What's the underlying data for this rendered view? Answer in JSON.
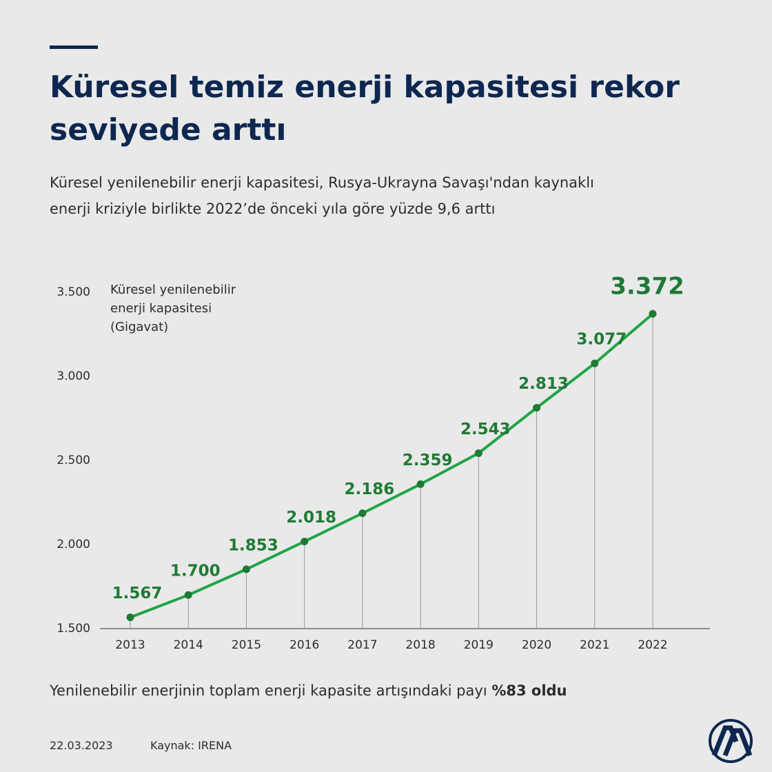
{
  "header": {
    "title": "Küresel temiz enerji kapasitesi rekor seviyede arttı",
    "subtitle": "Küresel yenilenebilir enerji kapasitesi, Rusya-Ukrayna Savaşı'ndan kaynaklı enerji kriziyle birlikte 2022’de önceki yıla göre yüzde 9,6 arttı"
  },
  "chart_data": {
    "type": "line",
    "y_label": "Küresel yenilenebilir enerji kapasitesi (Gigavat)",
    "categories": [
      "2013",
      "2014",
      "2015",
      "2016",
      "2017",
      "2018",
      "2019",
      "2020",
      "2021",
      "2022"
    ],
    "values": [
      1567,
      1700,
      1853,
      2018,
      2186,
      2359,
      2543,
      2813,
      3077,
      3372
    ],
    "value_labels": [
      "1.567",
      "1.700",
      "1.853",
      "2.018",
      "2.186",
      "2.359",
      "2.543",
      "2.813",
      "3.077",
      "3.372"
    ],
    "color": "#1fa446",
    "label_color": "#1e7a34",
    "ylim": [
      1500,
      3500
    ],
    "yticks": [
      {
        "value": 1500,
        "label": "1.500"
      },
      {
        "value": 2000,
        "label": "2.000"
      },
      {
        "value": 2500,
        "label": "2.500"
      },
      {
        "value": 3000,
        "label": "3.000"
      },
      {
        "value": 3500,
        "label": "3.500"
      }
    ]
  },
  "footer": {
    "note": "Yenilenebilir enerjinin toplam enerji kapasite artışındaki payı",
    "note_emphasis": "%83 oldu",
    "date": "22.03.2023",
    "source": "Kaynak: IRENA"
  }
}
